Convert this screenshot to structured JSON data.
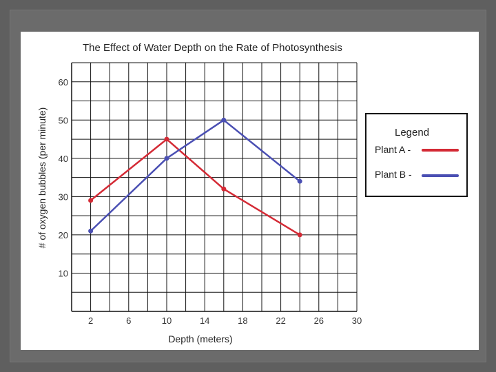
{
  "chart_data": {
    "type": "line",
    "title": "The Effect of Water Depth on the Rate of Photosynthesis",
    "xlabel": "Depth (meters)",
    "ylabel": "# of oxygen bubbles (per minute)",
    "x_ticks": [
      "2",
      "6",
      "10",
      "14",
      "18",
      "22",
      "26",
      "30"
    ],
    "y_ticks": [
      "10",
      "20",
      "30",
      "40",
      "50",
      "60"
    ],
    "xlim": [
      0,
      30
    ],
    "ylim": [
      0,
      65
    ],
    "grid": true,
    "legend": {
      "title": "Legend",
      "placement": "right",
      "entries": [
        "Plant A -",
        "Plant B -"
      ]
    },
    "series": [
      {
        "name": "Plant A -",
        "color": "#d42a35",
        "x": [
          2,
          10,
          16,
          24
        ],
        "y": [
          29,
          45,
          32,
          20
        ]
      },
      {
        "name": "Plant B -",
        "color": "#4a4fb3",
        "x": [
          2,
          10,
          16,
          24
        ],
        "y": [
          21,
          40,
          50,
          34
        ]
      }
    ]
  }
}
